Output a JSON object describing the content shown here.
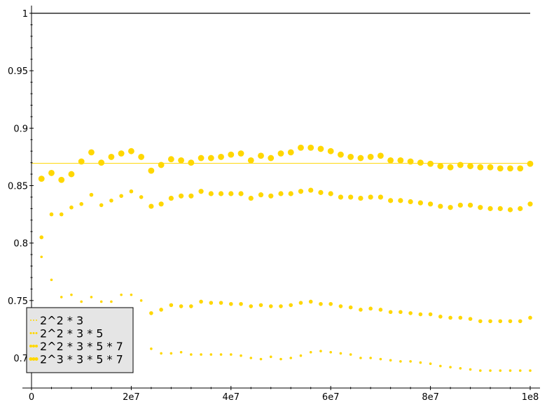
{
  "chart_data": {
    "type": "scatter",
    "title": "",
    "xlabel": "",
    "ylabel": "",
    "xlim": [
      0,
      100000000
    ],
    "ylim": [
      0.68,
      1.0
    ],
    "grid": false,
    "legend_placement": "bottom-left",
    "x_ticks": [
      {
        "value": 0,
        "label": "0"
      },
      {
        "value": 20000000,
        "label": "2e7"
      },
      {
        "value": 40000000,
        "label": "4e7"
      },
      {
        "value": 60000000,
        "label": "6e7"
      },
      {
        "value": 80000000,
        "label": "8e7"
      },
      {
        "value": 100000000,
        "label": "1e8"
      }
    ],
    "y_ticks": [
      {
        "value": 0.7,
        "label": "0.7"
      },
      {
        "value": 0.75,
        "label": "0.75"
      },
      {
        "value": 0.8,
        "label": "0.8"
      },
      {
        "value": 0.85,
        "label": "0.85"
      },
      {
        "value": 0.9,
        "label": "0.9"
      },
      {
        "value": 0.95,
        "label": "0.95"
      },
      {
        "value": 1.0,
        "label": "1"
      }
    ],
    "x": [
      2000000,
      4000000,
      6000000,
      8000000,
      10000000,
      12000000,
      14000000,
      16000000,
      18000000,
      20000000,
      22000000,
      24000000,
      26000000,
      28000000,
      30000000,
      32000000,
      34000000,
      36000000,
      38000000,
      40000000,
      42000000,
      44000000,
      46000000,
      48000000,
      50000000,
      52000000,
      54000000,
      56000000,
      58000000,
      60000000,
      62000000,
      64000000,
      66000000,
      68000000,
      70000000,
      72000000,
      74000000,
      76000000,
      78000000,
      80000000,
      82000000,
      84000000,
      86000000,
      88000000,
      90000000,
      92000000,
      94000000,
      96000000,
      98000000,
      100000000
    ],
    "series": [
      {
        "name": "2^2 * 3",
        "color": "#ffd700",
        "values": [
          0.788,
          0.768,
          0.753,
          0.755,
          0.749,
          0.753,
          0.749,
          0.749,
          0.755,
          0.755,
          0.75,
          0.708,
          0.704,
          0.704,
          0.705,
          0.703,
          0.703,
          0.703,
          0.703,
          0.703,
          0.702,
          0.7,
          0.699,
          0.701,
          0.699,
          0.7,
          0.702,
          0.705,
          0.706,
          0.705,
          0.704,
          0.703,
          0.7,
          0.7,
          0.699,
          0.698,
          0.697,
          0.697,
          0.696,
          0.695,
          0.693,
          0.692,
          0.691,
          0.69,
          0.689,
          0.689,
          0.689,
          0.689,
          0.689,
          0.689
        ]
      },
      {
        "name": "2^2 * 3 * 5",
        "color": "#ffd700",
        "values": [
          0.805,
          0.825,
          0.825,
          0.831,
          0.834,
          0.842,
          0.833,
          0.837,
          0.841,
          0.845,
          0.84,
          0.739,
          0.742,
          0.746,
          0.745,
          0.745,
          0.749,
          0.748,
          0.748,
          0.747,
          0.747,
          0.745,
          0.746,
          0.745,
          0.745,
          0.746,
          0.748,
          0.749,
          0.747,
          0.747,
          0.745,
          0.744,
          0.742,
          0.743,
          0.742,
          0.74,
          0.74,
          0.739,
          0.738,
          0.738,
          0.736,
          0.735,
          0.735,
          0.734,
          0.732,
          0.732,
          0.732,
          0.732,
          0.732,
          0.735
        ]
      },
      {
        "name": "2^2 * 3 * 5 * 7",
        "color": "#ffd700",
        "values": [
          0.856,
          0.861,
          0.855,
          0.86,
          0.871,
          0.879,
          0.87,
          0.875,
          0.878,
          0.88,
          0.875,
          0.832,
          0.834,
          0.839,
          0.841,
          0.841,
          0.845,
          0.843,
          0.843,
          0.843,
          0.843,
          0.839,
          0.842,
          0.841,
          0.843,
          0.843,
          0.845,
          0.846,
          0.844,
          0.843,
          0.84,
          0.84,
          0.839,
          0.84,
          0.84,
          0.837,
          0.837,
          0.836,
          0.835,
          0.834,
          0.832,
          0.831,
          0.833,
          0.833,
          0.831,
          0.83,
          0.83,
          0.829,
          0.83,
          0.834
        ]
      },
      {
        "name": "2^3 * 3 * 5 * 7",
        "color": "#ffd700",
        "values": [
          0.856,
          0.861,
          0.855,
          0.86,
          0.871,
          0.879,
          0.87,
          0.875,
          0.878,
          0.88,
          0.875,
          0.863,
          0.868,
          0.873,
          0.872,
          0.87,
          0.874,
          0.874,
          0.875,
          0.877,
          0.878,
          0.872,
          0.876,
          0.874,
          0.878,
          0.879,
          0.883,
          0.883,
          0.882,
          0.88,
          0.877,
          0.875,
          0.874,
          0.875,
          0.876,
          0.872,
          0.872,
          0.871,
          0.87,
          0.869,
          0.867,
          0.866,
          0.868,
          0.867,
          0.866,
          0.866,
          0.865,
          0.865,
          0.865,
          0.869
        ]
      }
    ],
    "reference_lines": [
      {
        "y": 1.0,
        "color": "#000000"
      },
      {
        "y": 0.8694,
        "color": "#ffd700"
      }
    ]
  }
}
